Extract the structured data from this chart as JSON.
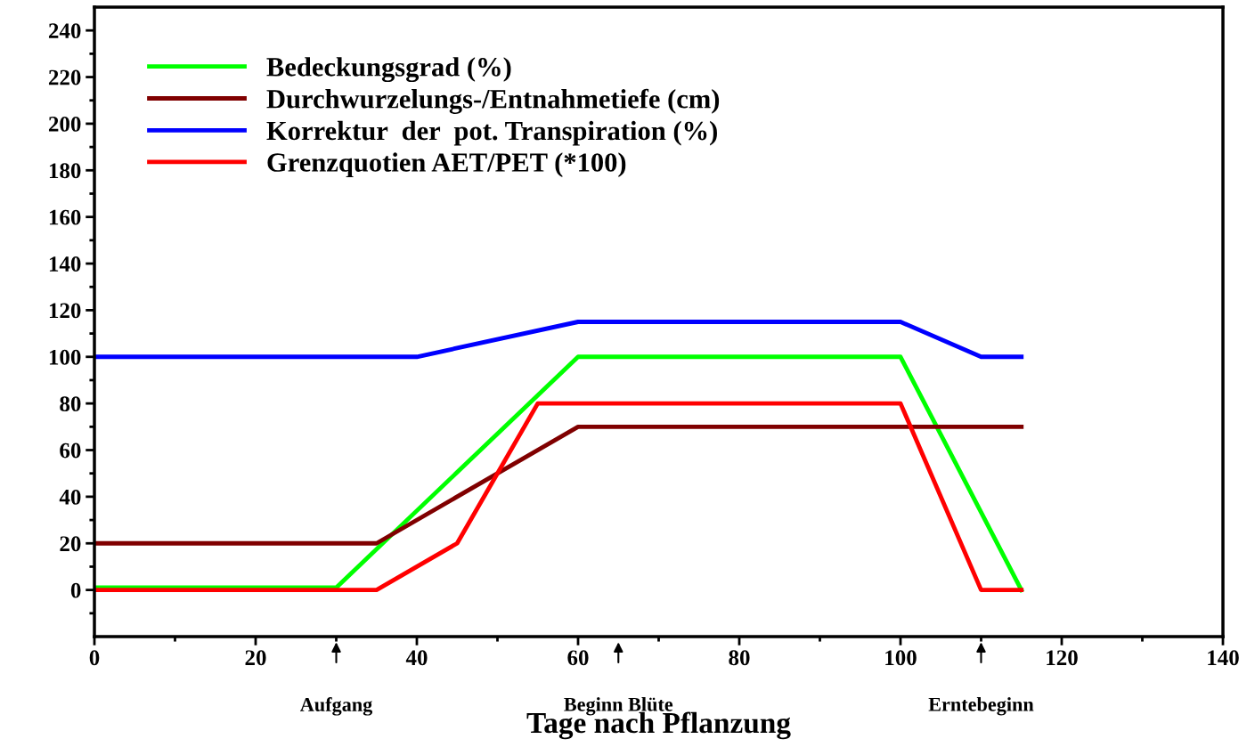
{
  "chart_data": {
    "type": "line",
    "xlabel": "Tage nach Pflanzung",
    "xlim": [
      0,
      140
    ],
    "ylim": [
      -20,
      250
    ],
    "xticks": [
      0,
      {
        "value": 10,
        "label": null
      },
      20,
      {
        "value": 30,
        "label": null
      },
      40,
      {
        "value": 50,
        "label": null
      },
      60,
      {
        "value": 70,
        "label": null
      },
      80,
      {
        "value": 90,
        "label": null
      },
      100,
      {
        "value": 110,
        "label": null
      },
      120,
      {
        "value": 130,
        "label": null
      },
      140
    ],
    "yticks": [
      {
        "value": -10,
        "label": null
      },
      0,
      {
        "value": 10,
        "label": null
      },
      20,
      {
        "value": 30,
        "label": null
      },
      40,
      {
        "value": 50,
        "label": null
      },
      60,
      {
        "value": 70,
        "label": null
      },
      80,
      {
        "value": 90,
        "label": null
      },
      100,
      {
        "value": 110,
        "label": null
      },
      120,
      {
        "value": 130,
        "label": null
      },
      140,
      {
        "value": 150,
        "label": null
      },
      160,
      {
        "value": 170,
        "label": null
      },
      180,
      {
        "value": 190,
        "label": null
      },
      200,
      {
        "value": 210,
        "label": null
      },
      220,
      {
        "value": 230,
        "label": null
      },
      240
    ],
    "grid": false,
    "legend": "top left",
    "marker": "none",
    "line_style": "solid",
    "series": [
      {
        "name": "Bedeckungsgrad (%)",
        "color": "#00ff00",
        "x": [
          0,
          30,
          60,
          100,
          115
        ],
        "values": [
          1,
          1,
          100,
          100,
          0
        ]
      },
      {
        "name": "Durchwurzelungs-/Entnahmetiefe (cm)",
        "color": "#800000",
        "x": [
          0,
          35,
          60,
          115
        ],
        "values": [
          20,
          20,
          70,
          70
        ]
      },
      {
        "name": "Korrektur  der  pot. Transpiration (%)",
        "color": "#0000ff",
        "x": [
          0,
          40,
          60,
          100,
          110,
          115
        ],
        "values": [
          100,
          100,
          115,
          115,
          100,
          100
        ]
      },
      {
        "name": "Grenzquotien AET/PET (*100)",
        "color": "#ff0000",
        "x": [
          0,
          35,
          45,
          55,
          100,
          110,
          115
        ],
        "values": [
          0,
          0,
          20,
          80,
          80,
          0,
          0
        ]
      }
    ],
    "annotations": [
      "Aufgang",
      "Beginn Blüte",
      "Erntebeginn"
    ]
  }
}
